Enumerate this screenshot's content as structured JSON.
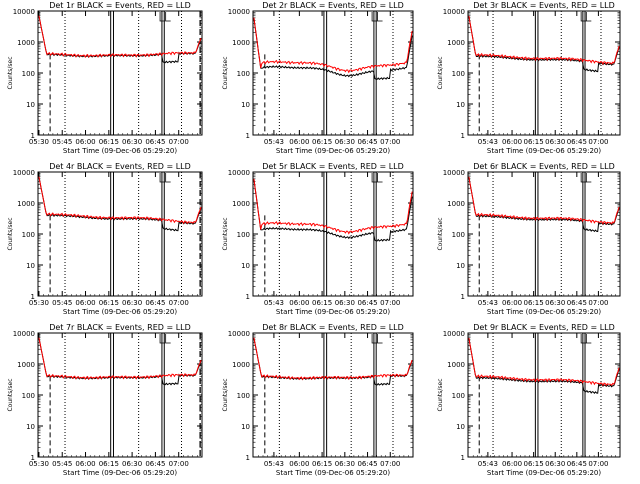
{
  "colors": {
    "events": "#000000",
    "lld": "#ff0000",
    "background": "#ffffff"
  },
  "ylabel": "Counts/sec",
  "ytick_labels": [
    "1",
    "10",
    "100",
    "1000",
    "10000"
  ],
  "xtick_labels_a": [
    "05:30",
    "05:45",
    "06:00",
    "06:15",
    "06:30",
    "06:45",
    "07:00"
  ],
  "xtick_labels_b": [
    "05:43",
    "06:00",
    "06:15",
    "06:30",
    "06:45",
    "07:00"
  ],
  "xlabel": "Start Time (09-Dec-06 05:29:20)",
  "chart_data": [
    {
      "type": "line",
      "title": "Det 1r BLACK = Events, RED = LLD",
      "xticks": "a",
      "xrange_hours_utc": [
        5.49,
        7.25
      ],
      "ylim": [
        1,
        10000
      ],
      "yscale": "log",
      "profile": "flat",
      "events_level": 400,
      "lld_ratio": 1.05
    },
    {
      "type": "line",
      "title": "Det 2r BLACK = Events, RED = LLD",
      "xticks": "b",
      "xrange_hours_utc": [
        5.49,
        7.25
      ],
      "ylim": [
        1,
        10000
      ],
      "yscale": "log",
      "profile": "wavy",
      "events_level": 100,
      "lld_ratio": 1.45
    },
    {
      "type": "line",
      "title": "Det 3r BLACK = Events, RED = LLD",
      "xticks": "b",
      "xrange_hours_utc": [
        5.49,
        7.25
      ],
      "ylim": [
        1,
        10000
      ],
      "yscale": "log",
      "profile": "decline",
      "events_level": 330,
      "lld_ratio": 1.1
    },
    {
      "type": "line",
      "title": "Det 4r BLACK = Events, RED = LLD",
      "xticks": "a",
      "xrange_hours_utc": [
        5.49,
        7.25
      ],
      "ylim": [
        1,
        10000
      ],
      "yscale": "log",
      "profile": "decline",
      "events_level": 380,
      "lld_ratio": 1.08
    },
    {
      "type": "line",
      "title": "Det 5r BLACK = Events, RED = LLD",
      "xticks": "b",
      "xrange_hours_utc": [
        5.49,
        7.25
      ],
      "ylim": [
        1,
        10000
      ],
      "yscale": "log",
      "profile": "wavy",
      "events_level": 95,
      "lld_ratio": 1.5
    },
    {
      "type": "line",
      "title": "Det 6r BLACK = Events, RED = LLD",
      "xticks": "b",
      "xrange_hours_utc": [
        5.49,
        7.25
      ],
      "ylim": [
        1,
        10000
      ],
      "yscale": "log",
      "profile": "decline",
      "events_level": 360,
      "lld_ratio": 1.1
    },
    {
      "type": "line",
      "title": "Det 7r BLACK = Events, RED = LLD",
      "xticks": "a",
      "xrange_hours_utc": [
        5.49,
        7.25
      ],
      "ylim": [
        1,
        10000
      ],
      "yscale": "log",
      "profile": "flat",
      "events_level": 400,
      "lld_ratio": 1.05
    },
    {
      "type": "line",
      "title": "Det 8r BLACK = Events, RED = LLD",
      "xticks": "b",
      "xrange_hours_utc": [
        5.49,
        7.25
      ],
      "ylim": [
        1,
        10000
      ],
      "yscale": "log",
      "profile": "flat",
      "events_level": 390,
      "lld_ratio": 1.05
    },
    {
      "type": "line",
      "title": "Det 9r BLACK = Events, RED = LLD",
      "xticks": "b",
      "xrange_hours_utc": [
        5.49,
        7.25
      ],
      "ylim": [
        1,
        10000
      ],
      "yscale": "log",
      "profile": "decline",
      "events_level": 340,
      "lld_ratio": 1.12
    }
  ]
}
